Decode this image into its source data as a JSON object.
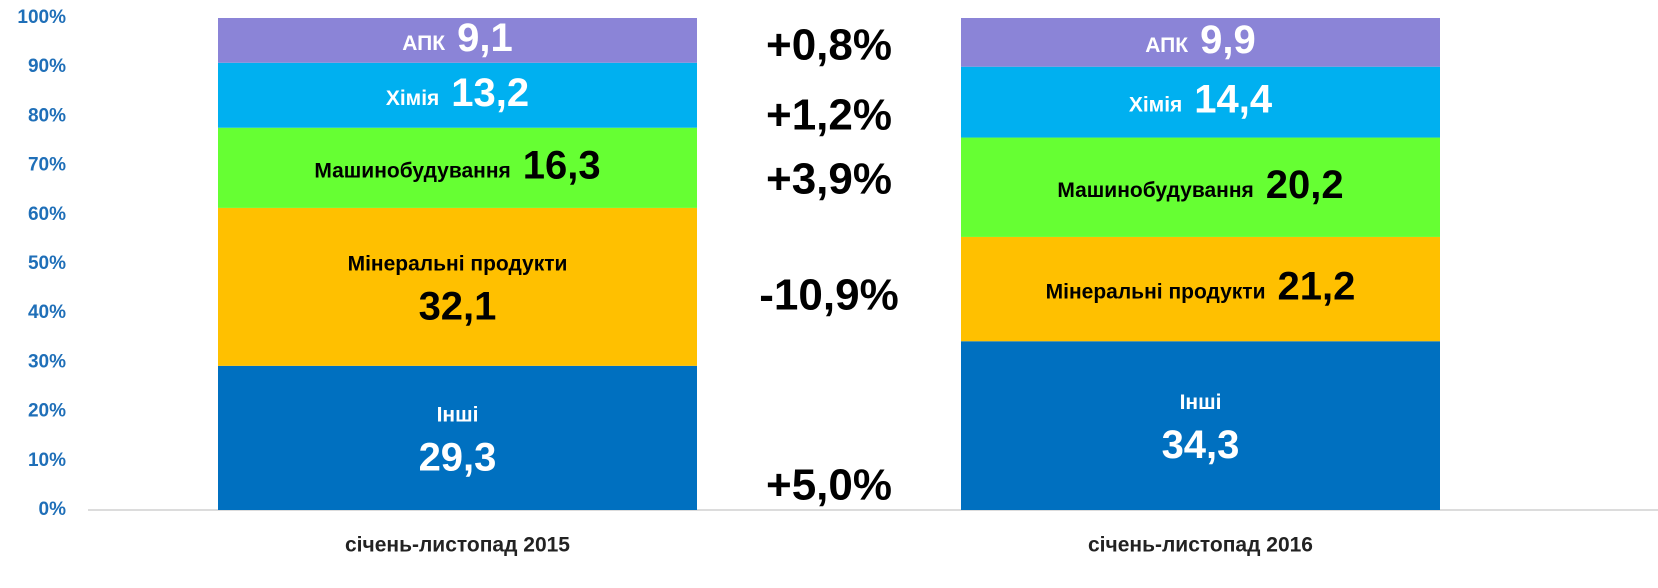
{
  "chart_data": {
    "type": "stacked_bar",
    "categories": [
      "січень-листопад 2015",
      "січень-листопад 2016"
    ],
    "series": [
      {
        "name": "Інші",
        "color": "#0070c0",
        "label_color": "#ffffff",
        "values": [
          29.3,
          34.3
        ],
        "value_labels": [
          "29,3",
          "34,3"
        ]
      },
      {
        "name": "Мінеральні продукти",
        "color": "#ffc000",
        "label_color": "#000000",
        "values": [
          32.1,
          21.2
        ],
        "value_labels": [
          "32,1",
          "21,2"
        ]
      },
      {
        "name": "Машинобудування",
        "color": "#66ff33",
        "label_color": "#000000",
        "values": [
          16.3,
          20.2
        ],
        "value_labels": [
          "16,3",
          "20,2"
        ]
      },
      {
        "name": "Хімія",
        "color": "#00b0f0",
        "label_color": "#ffffff",
        "values": [
          13.2,
          14.4
        ],
        "value_labels": [
          "13,2",
          "14,4"
        ]
      },
      {
        "name": "АПК",
        "color": "#8b84d7",
        "label_color": "#ffffff",
        "values": [
          9.1,
          9.9
        ],
        "value_labels": [
          "9,1",
          "9,9"
        ]
      }
    ],
    "annotations": [
      "+5,0%",
      "-10,9%",
      "+3,9%",
      "+1,2%",
      "+0,8%"
    ],
    "ylim": [
      0,
      100
    ],
    "yticks": [
      {
        "value": 0,
        "label": "0%"
      },
      {
        "value": 10,
        "label": "10%"
      },
      {
        "value": 20,
        "label": "20%"
      },
      {
        "value": 30,
        "label": "30%"
      },
      {
        "value": 40,
        "label": "40%"
      },
      {
        "value": 50,
        "label": "50%"
      },
      {
        "value": 60,
        "label": "60%"
      },
      {
        "value": 70,
        "label": "70%"
      },
      {
        "value": 80,
        "label": "80%"
      },
      {
        "value": 90,
        "label": "90%"
      },
      {
        "value": 100,
        "label": "100%"
      }
    ]
  }
}
